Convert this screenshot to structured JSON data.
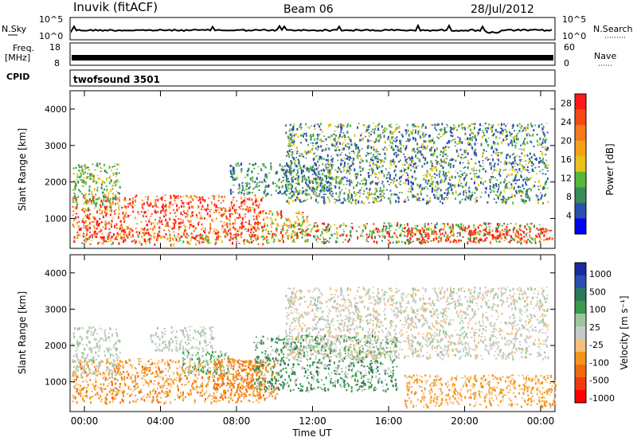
{
  "header": {
    "station": "Inuvik (fitACF)",
    "beam": "Beam 06",
    "date": "28/Jul/2012"
  },
  "top_panels": {
    "nsky_label": "N.Sky",
    "nsky_scale_top": "10^5",
    "nsky_scale_bottom": "10^0",
    "nsearch_label": "N.Search",
    "nsearch_scale_top": "10^5",
    "nsearch_scale_bottom": "10^0",
    "freq_label": "Freq.",
    "freq_unit": "[MHz]",
    "freq_top": "18",
    "freq_bottom": "8",
    "nave_label": "Nave",
    "nave_top": "60",
    "nave_bottom": "0",
    "cpid_label": "CPID",
    "cpid_value": "twofsound 3501"
  },
  "colors": {
    "power_scale": [
      "#0000ff",
      "#2a4fb0",
      "#3a8a5a",
      "#55b83a",
      "#e9c21a",
      "#f5a21a",
      "#f47a1a",
      "#f54a14",
      "#ff1a1a"
    ],
    "velocity_scale": [
      "#ff0000",
      "#f03a10",
      "#f06a10",
      "#f5941a",
      "#f4c07a",
      "#c8c8c8",
      "#9ac89a",
      "#3a9a4a",
      "#2a7a5a",
      "#2a4fb0",
      "#1a2aa0"
    ]
  },
  "chart_data": [
    {
      "type": "heatmap",
      "title": "",
      "xlabel": "",
      "ylabel": "Slant Range [km]",
      "xlim": [
        "00:00",
        "00:00"
      ],
      "ylim": [
        180,
        4500
      ],
      "x_ticks": [
        "00:00",
        "04:00",
        "08:00",
        "12:00",
        "16:00",
        "20:00",
        "00:00"
      ],
      "y_ticks": [
        1000,
        2000,
        3000,
        4000
      ],
      "colorbar_label": "Power [dB]",
      "colorbar_ticks": [
        4,
        8,
        12,
        16,
        20,
        24,
        28
      ],
      "colorbar_range": [
        0,
        30
      ]
    },
    {
      "type": "heatmap",
      "title": "",
      "xlabel": "Time UT",
      "ylabel": "Slant Range [km]",
      "xlim": [
        "00:00",
        "00:00"
      ],
      "ylim": [
        180,
        4500
      ],
      "x_ticks": [
        "00:00",
        "04:00",
        "08:00",
        "12:00",
        "16:00",
        "20:00",
        "00:00"
      ],
      "y_ticks": [
        1000,
        2000,
        3000,
        4000
      ],
      "colorbar_label": "Velocity [m s⁻¹]",
      "colorbar_ticks": [
        1000,
        500,
        100,
        25,
        -25,
        -100,
        -500,
        -1000
      ]
    }
  ]
}
